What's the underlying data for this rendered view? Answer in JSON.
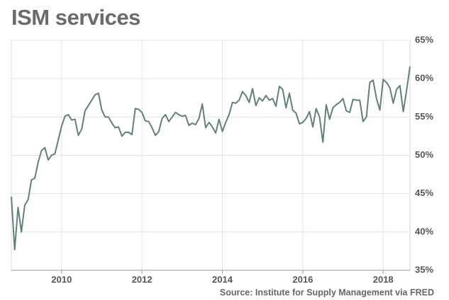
{
  "chart_data": {
    "type": "line",
    "title": "ISM services",
    "source": "Source: Institute for Supply Management via FRED",
    "x": [
      2008.75,
      2008.833,
      2008.917,
      2009,
      2009.083,
      2009.167,
      2009.25,
      2009.333,
      2009.417,
      2009.5,
      2009.583,
      2009.667,
      2009.75,
      2009.833,
      2009.917,
      2010,
      2010.083,
      2010.167,
      2010.25,
      2010.333,
      2010.417,
      2010.5,
      2010.583,
      2010.667,
      2010.75,
      2010.833,
      2010.917,
      2011,
      2011.083,
      2011.167,
      2011.25,
      2011.333,
      2011.417,
      2011.5,
      2011.583,
      2011.667,
      2011.75,
      2011.833,
      2011.917,
      2012,
      2012.083,
      2012.167,
      2012.25,
      2012.333,
      2012.417,
      2012.5,
      2012.583,
      2012.667,
      2012.75,
      2012.833,
      2012.917,
      2013,
      2013.083,
      2013.167,
      2013.25,
      2013.333,
      2013.417,
      2013.5,
      2013.583,
      2013.667,
      2013.75,
      2013.833,
      2013.917,
      2014,
      2014.083,
      2014.167,
      2014.25,
      2014.333,
      2014.417,
      2014.5,
      2014.583,
      2014.667,
      2014.75,
      2014.833,
      2014.917,
      2015,
      2015.083,
      2015.167,
      2015.25,
      2015.333,
      2015.417,
      2015.5,
      2015.583,
      2015.667,
      2015.75,
      2015.833,
      2015.917,
      2016,
      2016.083,
      2016.167,
      2016.25,
      2016.333,
      2016.417,
      2016.5,
      2016.583,
      2016.667,
      2016.75,
      2016.833,
      2016.917,
      2017,
      2017.083,
      2017.167,
      2017.25,
      2017.333,
      2017.417,
      2017.5,
      2017.583,
      2017.667,
      2017.75,
      2017.833,
      2017.917,
      2018,
      2018.083,
      2018.167,
      2018.25,
      2018.333,
      2018.417,
      2018.5,
      2018.583,
      2018.667
    ],
    "series": [
      {
        "name": "ISM services",
        "color": "#62817c",
        "values": [
          44.6,
          37.7,
          43.2,
          40,
          43.5,
          44.2,
          46.8,
          47,
          49.1,
          50.6,
          51,
          49.4,
          50,
          50.2,
          52,
          53.8,
          55.1,
          55.3,
          54.6,
          54.7,
          52.6,
          53.4,
          55.8,
          56.5,
          57.2,
          57.9,
          58.1,
          55.9,
          55,
          55,
          54.2,
          53.6,
          53.7,
          52.5,
          53,
          53,
          52.7,
          56.1,
          56,
          55.6,
          54.5,
          54.4,
          53.6,
          52.6,
          53.1,
          54.8,
          55.3,
          54.4,
          55,
          55.6,
          55.3,
          55.1,
          55.2,
          53.9,
          54.2,
          54,
          54.8,
          56.7,
          53.6,
          54.3,
          53.7,
          52.9,
          54.7,
          53.1,
          54.3,
          55.3,
          56.9,
          56.8,
          57.2,
          58.3,
          57.8,
          56.9,
          58.7,
          56.5,
          57.5,
          57.1,
          57.8,
          57.2,
          57.4,
          56.4,
          59,
          58.6,
          56.2,
          58.1,
          55.9,
          55.5,
          54.1,
          54.3,
          54.8,
          55.7,
          53.7,
          56.1,
          55,
          51.7,
          56.6,
          54.7,
          56.2,
          56.6,
          56.9,
          57.4,
          55.8,
          55.6,
          57.3,
          57.2,
          57.2,
          54.4,
          55,
          59.5,
          59.8,
          57.4,
          55.9,
          59.9,
          59.5,
          58.8,
          56.8,
          58.6,
          59.1,
          55.7,
          58.5,
          61.6
        ]
      }
    ],
    "xlim": [
      2008.75,
      2018.667
    ],
    "xticks": [
      2010,
      2012,
      2014,
      2016,
      2018
    ],
    "ylim": [
      35,
      65
    ],
    "yticks": [
      {
        "value": 35,
        "label": "35%"
      },
      {
        "value": 40,
        "label": "40%"
      },
      {
        "value": 45,
        "label": "45%"
      },
      {
        "value": 50,
        "label": "50%"
      },
      {
        "value": 55,
        "label": "55%"
      },
      {
        "value": 60,
        "label": "60%"
      },
      {
        "value": 65,
        "label": "65%"
      }
    ],
    "grid": true
  }
}
